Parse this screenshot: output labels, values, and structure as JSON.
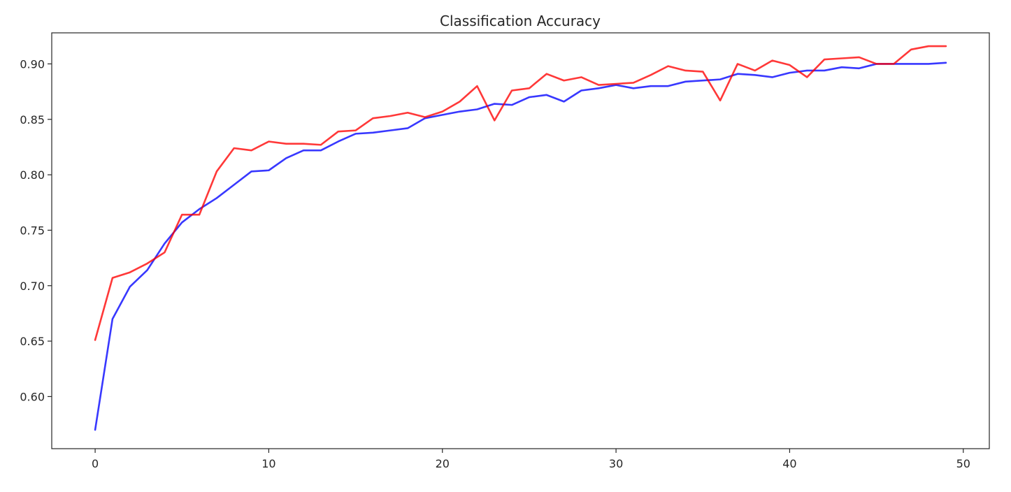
{
  "chart_data": {
    "type": "line",
    "title": "Classification Accuracy",
    "xlabel": "",
    "ylabel": "",
    "xlim": [
      -2.5,
      51.5
    ],
    "ylim": [
      0.553,
      0.928
    ],
    "x_ticks": [
      0,
      10,
      20,
      30,
      40,
      50
    ],
    "x_tick_labels": [
      "0",
      "10",
      "20",
      "30",
      "40",
      "50"
    ],
    "y_ticks": [
      0.6,
      0.65,
      0.7,
      0.75,
      0.8,
      0.85,
      0.9
    ],
    "y_tick_labels": [
      "0.60",
      "0.65",
      "0.70",
      "0.75",
      "0.80",
      "0.85",
      "0.90"
    ],
    "grid": false,
    "x": [
      0,
      1,
      2,
      3,
      4,
      5,
      6,
      7,
      8,
      9,
      10,
      11,
      12,
      13,
      14,
      15,
      16,
      17,
      18,
      19,
      20,
      21,
      22,
      23,
      24,
      25,
      26,
      27,
      28,
      29,
      30,
      31,
      32,
      33,
      34,
      35,
      36,
      37,
      38,
      39,
      40,
      41,
      42,
      43,
      44,
      45,
      46,
      47,
      48,
      49
    ],
    "series": [
      {
        "color": "#0000ff",
        "values": [
          0.57,
          0.67,
          0.699,
          0.714,
          0.738,
          0.757,
          0.769,
          0.779,
          0.791,
          0.803,
          0.804,
          0.815,
          0.822,
          0.822,
          0.83,
          0.837,
          0.838,
          0.84,
          0.842,
          0.851,
          0.854,
          0.857,
          0.859,
          0.864,
          0.863,
          0.87,
          0.872,
          0.866,
          0.876,
          0.878,
          0.881,
          0.878,
          0.88,
          0.88,
          0.884,
          0.885,
          0.886,
          0.891,
          0.89,
          0.888,
          0.892,
          0.894,
          0.894,
          0.897,
          0.896,
          0.9,
          0.9,
          0.9,
          0.9,
          0.901
        ]
      },
      {
        "color": "#ff0000",
        "values": [
          0.651,
          0.707,
          0.712,
          0.72,
          0.73,
          0.764,
          0.764,
          0.803,
          0.824,
          0.822,
          0.83,
          0.828,
          0.828,
          0.827,
          0.839,
          0.84,
          0.851,
          0.853,
          0.856,
          0.852,
          0.857,
          0.866,
          0.88,
          0.849,
          0.876,
          0.878,
          0.891,
          0.885,
          0.888,
          0.881,
          0.882,
          0.883,
          0.89,
          0.898,
          0.894,
          0.893,
          0.867,
          0.9,
          0.894,
          0.903,
          0.899,
          0.888,
          0.904,
          0.905,
          0.906,
          0.9,
          0.9,
          0.913,
          0.916,
          0.916
        ]
      }
    ]
  }
}
